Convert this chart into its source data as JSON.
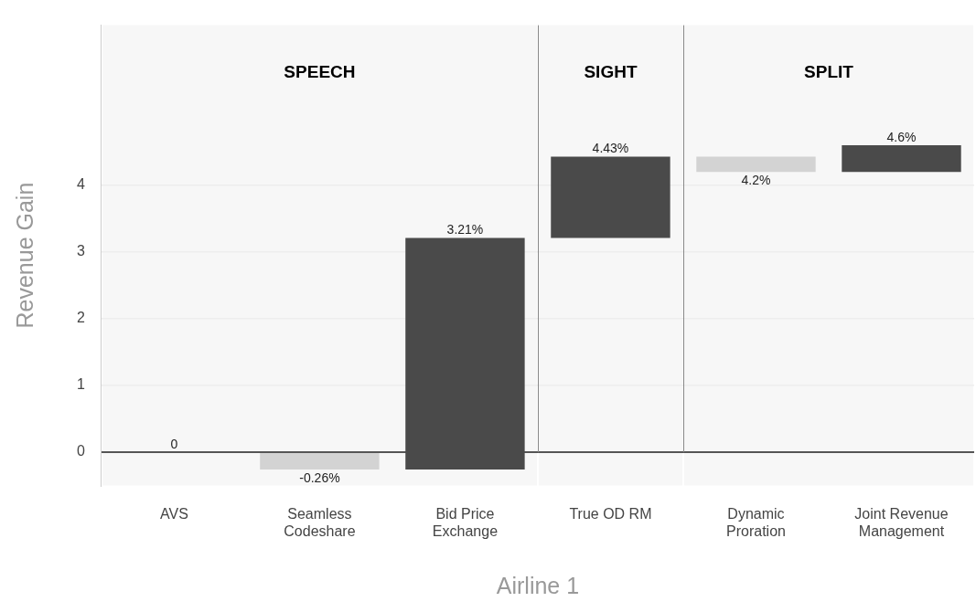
{
  "chart_data": {
    "type": "bar",
    "xlabel": "Airline 1",
    "ylabel": "Revenue Gain",
    "categories": [
      "AVS",
      "Seamless Codeshare",
      "Bid Price Exchange",
      "True OD RM",
      "Dynamic Proration",
      "Joint Revenue Management"
    ],
    "base": [
      null,
      0,
      -0.26,
      3.21,
      4.43,
      4.2
    ],
    "values": [
      0,
      -0.26,
      3.47,
      1.22,
      -0.23,
      0.4
    ],
    "colors": [
      "#4a4a4a",
      "#d3d3d3",
      "#4a4a4a",
      "#4a4a4a",
      "#d3d3d3",
      "#4a4a4a"
    ],
    "value_labels": [
      "0",
      "-0.26%",
      "3.21%",
      "4.43%",
      "4.2%",
      "4.6%"
    ],
    "bands": [
      {
        "axis": "x",
        "from": "AVS",
        "to": "Bid Price Exchange",
        "label": "SPEECH",
        "color": "#f7f7f7"
      },
      {
        "axis": "x",
        "from": "True OD RM",
        "to": "True OD RM",
        "label": "SIGHT",
        "color": "#f7f7f7"
      },
      {
        "axis": "x",
        "from": "Dynamic Proration",
        "to": "Joint Revenue Management",
        "label": "SPLIT",
        "color": "#f7f7f7"
      }
    ],
    "ylim": [
      -0.5,
      6.4
    ],
    "yticks": [
      0,
      1,
      2,
      3,
      4
    ],
    "grid": "y",
    "legend": false
  }
}
